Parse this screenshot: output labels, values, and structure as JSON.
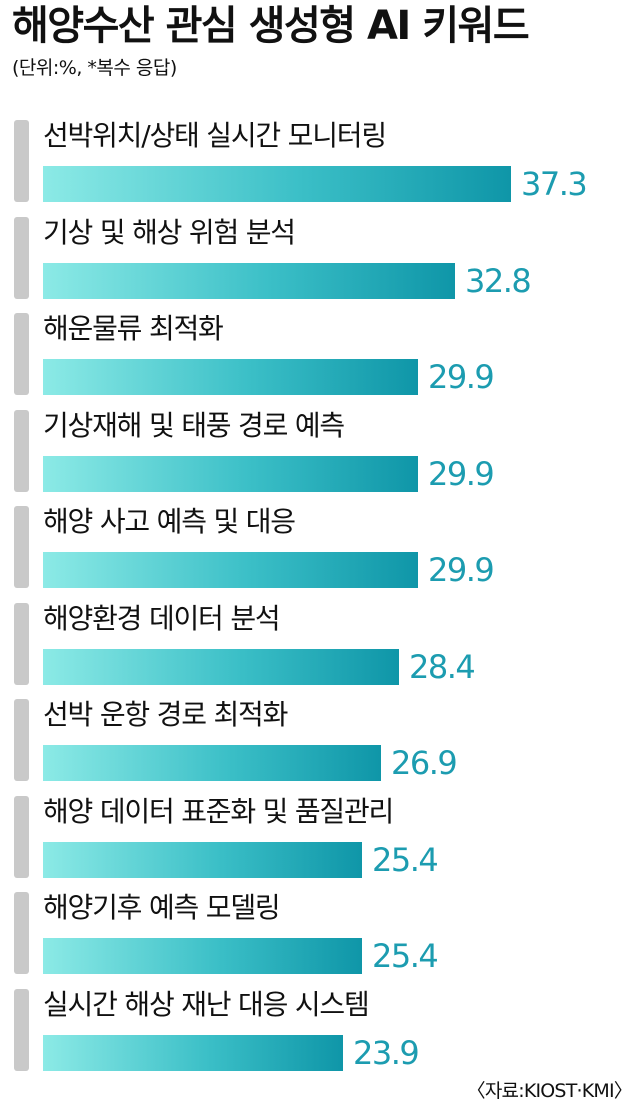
{
  "title": "해양수산 관심 생성형 AI 키워드",
  "subtitle": "(단위:%, *복수 응답)",
  "source": "〈자료:KIOST·KMI〉",
  "colors": {
    "bar_start": "#8ceae6",
    "bar_end": "#0f96a8",
    "value_text": "#1c9cb0",
    "accent": "#c9c9c9"
  },
  "chart_data": {
    "type": "bar",
    "orientation": "horizontal",
    "title": "해양수산 관심 생성형 AI 키워드",
    "subtitle": "(단위:%, *복수 응답)",
    "unit": "%",
    "categories": [
      "선박위치/상태 실시간 모니터링",
      "기상 및 해상 위험 분석",
      "해운물류 최적화",
      "기상재해 및 태풍 경로 예측",
      "해양 사고 예측 및 대응",
      "해양환경 데이터 분석",
      "선박 운항 경로 최적화",
      "해양 데이터 표준화 및 품질관리",
      "해양기후 예측 모델링",
      "실시간 해상 재난 대응 시스템"
    ],
    "values": [
      37.3,
      32.8,
      29.9,
      29.9,
      29.9,
      28.4,
      26.9,
      25.4,
      25.4,
      23.9
    ],
    "value_labels": [
      "37.3",
      "32.8",
      "29.9",
      "29.9",
      "29.9",
      "28.4",
      "26.9",
      "25.4",
      "25.4",
      "23.9"
    ],
    "source": "〈자료:KIOST·KMI〉"
  }
}
